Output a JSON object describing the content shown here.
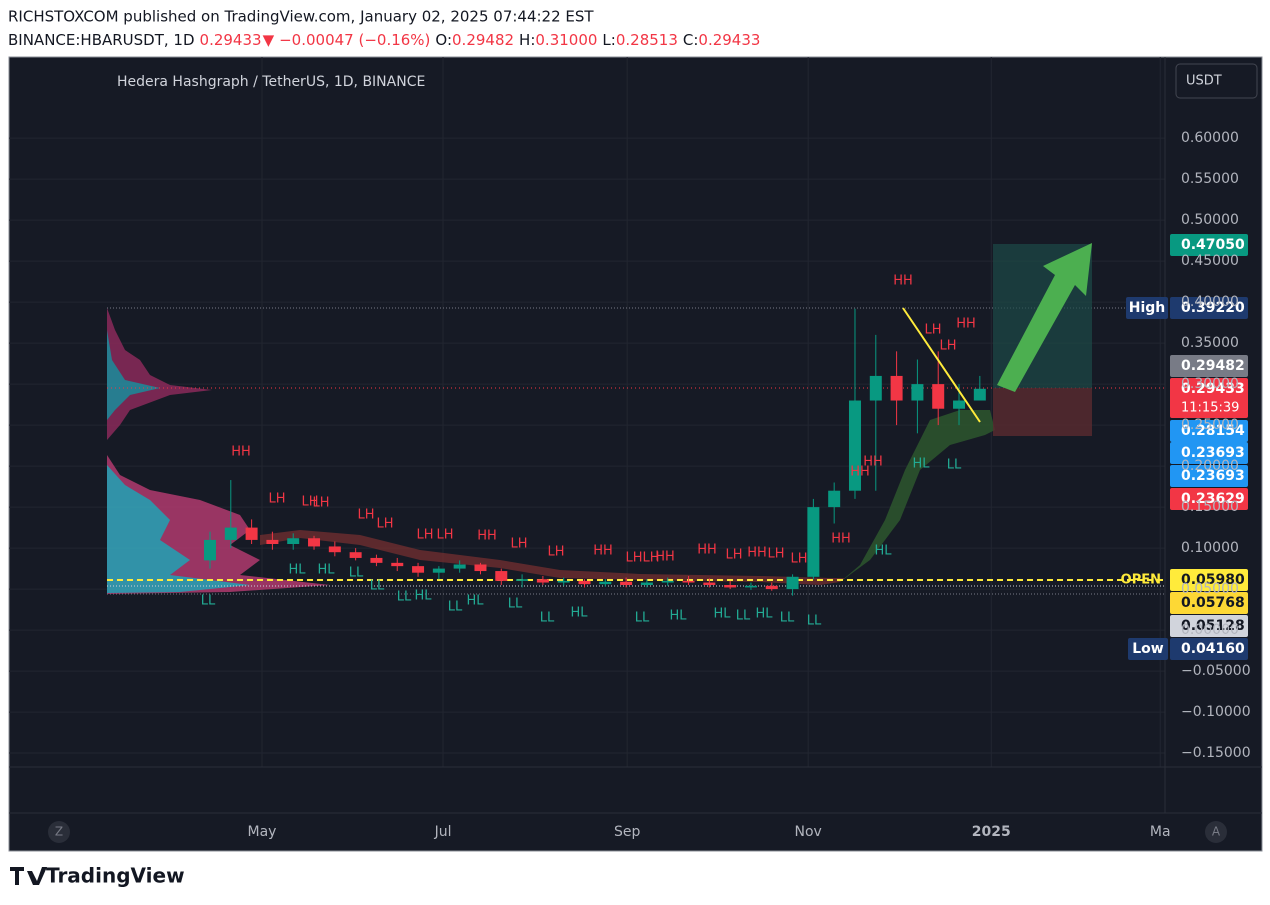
{
  "header": {
    "line1": "RICHSTOXCOM published on TradingView.com, January 02, 2025 07:44:22 EST",
    "line2": [
      {
        "text": "BINANCE:HBARUSDT, 1D",
        "color": "#131722"
      },
      {
        "text": "0.29433",
        "color": "#f23645"
      },
      {
        "text": "▼",
        "color": "#f23645"
      },
      {
        "text": "−0.00047 (−0.16%)",
        "color": "#f23645"
      },
      {
        "text": "O:",
        "color": "#131722"
      },
      {
        "text": "0.29482",
        "color": "#f23645"
      },
      {
        "text": "H:",
        "color": "#131722"
      },
      {
        "text": "0.31000",
        "color": "#f23645"
      },
      {
        "text": "L:",
        "color": "#131722"
      },
      {
        "text": "0.28513",
        "color": "#f23645"
      },
      {
        "text": "C:",
        "color": "#131722"
      },
      {
        "text": "0.29433",
        "color": "#f23645"
      }
    ]
  },
  "chart_data": {
    "type": "candlestick",
    "title": "Hedera Hashgraph / TetherUS, 1D, BINANCE",
    "currency_button": "USDT",
    "up_color": "#089981",
    "down_color": "#f23645",
    "open": [
      0.085,
      0.11,
      0.125,
      0.11,
      0.105,
      0.112,
      0.102,
      0.095,
      0.088,
      0.082,
      0.078,
      0.07,
      0.075,
      0.08,
      0.072,
      0.06,
      0.062,
      0.058,
      0.06,
      0.056,
      0.059,
      0.055,
      0.058,
      0.06,
      0.058,
      0.055,
      0.052,
      0.054,
      0.05,
      0.065,
      0.15,
      0.17,
      0.28,
      0.31,
      0.28,
      0.3,
      0.27,
      0.28
    ],
    "high": [
      0.12,
      0.183,
      0.135,
      0.12,
      0.118,
      0.115,
      0.108,
      0.1,
      0.092,
      0.088,
      0.082,
      0.078,
      0.085,
      0.082,
      0.075,
      0.068,
      0.066,
      0.064,
      0.062,
      0.062,
      0.064,
      0.062,
      0.064,
      0.066,
      0.063,
      0.06,
      0.058,
      0.058,
      0.068,
      0.16,
      0.18,
      0.392,
      0.36,
      0.34,
      0.33,
      0.34,
      0.3,
      0.31
    ],
    "low": [
      0.075,
      0.1,
      0.105,
      0.098,
      0.098,
      0.098,
      0.09,
      0.085,
      0.078,
      0.072,
      0.065,
      0.062,
      0.07,
      0.068,
      0.055,
      0.052,
      0.055,
      0.054,
      0.052,
      0.053,
      0.052,
      0.052,
      0.054,
      0.055,
      0.052,
      0.05,
      0.049,
      0.048,
      0.042,
      0.062,
      0.13,
      0.16,
      0.17,
      0.25,
      0.24,
      0.25,
      0.25,
      0.28513
    ],
    "close": [
      0.11,
      0.125,
      0.11,
      0.105,
      0.112,
      0.102,
      0.095,
      0.088,
      0.082,
      0.078,
      0.07,
      0.075,
      0.08,
      0.072,
      0.06,
      0.062,
      0.058,
      0.06,
      0.056,
      0.059,
      0.055,
      0.058,
      0.06,
      0.058,
      0.055,
      0.052,
      0.054,
      0.05,
      0.065,
      0.15,
      0.17,
      0.28,
      0.31,
      0.28,
      0.3,
      0.27,
      0.28,
      0.29433
    ],
    "xlim": [
      -4.95,
      45.9
    ],
    "xticks": [
      {
        "value": 2.5,
        "label": "May"
      },
      {
        "value": 11.2,
        "label": "Jul"
      },
      {
        "value": 20.05,
        "label": "Sep"
      },
      {
        "value": 28.75,
        "label": "Nov"
      },
      {
        "value": 37.55,
        "label": "2025"
      },
      {
        "value": 45.67,
        "label": "Ma"
      }
    ],
    "ylim": [
      -0.167,
      0.699
    ],
    "yticks": [
      {
        "value": 0.6,
        "label": "0.60000"
      },
      {
        "value": 0.55,
        "label": "0.55000"
      },
      {
        "value": 0.5,
        "label": "0.50000"
      },
      {
        "value": 0.45,
        "label": "0.45000"
      },
      {
        "value": 0.4,
        "label": "0.40000"
      },
      {
        "value": 0.35,
        "label": "0.35000"
      },
      {
        "value": 0.3,
        "label": "0.30000"
      },
      {
        "value": 0.25,
        "label": "0.25000"
      },
      {
        "value": 0.2,
        "label": "0.20000"
      },
      {
        "value": 0.15,
        "label": "0.15000"
      },
      {
        "value": 0.1,
        "label": "0.10000"
      },
      {
        "value": 0.05,
        "label": "0.05000"
      },
      {
        "value": 0,
        "label": "0.00000"
      },
      {
        "value": -0.05,
        "label": "−0.05000"
      },
      {
        "value": -0.1,
        "label": "−0.10000"
      },
      {
        "value": -0.15,
        "label": "−0.15000"
      }
    ],
    "grid": true,
    "price_tags": [
      {
        "text": "0.47050",
        "color": "#089981",
        "text_color": "#ffffff"
      },
      {
        "text": "0.39220",
        "color": "#1e3a6e",
        "text_color": "#ffffff"
      },
      {
        "text": "0.29482",
        "color": "#787b86",
        "text_color": "#ffffff"
      },
      {
        "text": "0.29433",
        "color": "#f23645",
        "text_color": "#ffffff"
      },
      {
        "text": "0.28154",
        "color": "#2196f3",
        "text_color": "#ffffff"
      },
      {
        "text": "0.23693",
        "color": "#2196f3",
        "text_color": "#ffffff"
      },
      {
        "text": "0.23693",
        "color": "#2196f3",
        "text_color": "#ffffff"
      },
      {
        "text": "0.23629",
        "color": "#f23645",
        "text_color": "#ffffff"
      },
      {
        "text": "0.05980",
        "color": "#ffeb3b",
        "text_color": "#131722"
      },
      {
        "text": "0.05768",
        "color": "#fdd835",
        "text_color": "#131722"
      },
      {
        "text": "0.05128",
        "color": "#d1d4dc",
        "text_color": "#131722"
      },
      {
        "text": "0.04160",
        "color": "#1e3a6e",
        "text_color": "#ffffff"
      }
    ],
    "countdown": "11:15:39",
    "high_label": "High",
    "low_label": "Low",
    "open_label": "OPEN",
    "pivot_labels": {
      "high_color": "#f23645",
      "low_color": "#22ab94",
      "highs": [
        "HH",
        "LH",
        "LH",
        "LH",
        "LH",
        "LH",
        "LH",
        "LH",
        "HH",
        "LH",
        "LH",
        "HH",
        "LH",
        "LH",
        "HH",
        "HH",
        "LH",
        "HH",
        "LH",
        "LH",
        "HH",
        "HH",
        "HH",
        "HH",
        "LH",
        "LH",
        "HH"
      ],
      "lows": [
        "LL",
        "HL",
        "HL",
        "LL",
        "LL",
        "LL",
        "HL",
        "LL",
        "HL",
        "LL",
        "LL",
        "HL",
        "LL",
        "HL",
        "HL",
        "LL",
        "HL",
        "LL",
        "LL",
        "HL",
        "HL",
        "LL"
      ]
    },
    "nav_left": "Z",
    "nav_right": "A"
  },
  "footer": {
    "brand": "TradingView"
  }
}
